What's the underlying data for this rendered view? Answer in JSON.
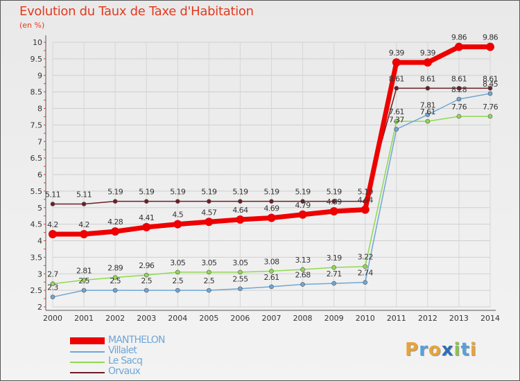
{
  "chart_data": {
    "type": "line",
    "title": "Evolution du Taux de Taxe d'Habitation",
    "subtitle": "(en %)",
    "xlabel": "",
    "ylabel": "",
    "categories": [
      "2000",
      "2001",
      "2002",
      "2003",
      "2004",
      "2005",
      "2006",
      "2007",
      "2008",
      "2009",
      "2010",
      "2011",
      "2012",
      "2013",
      "2014"
    ],
    "ylim": [
      2,
      10
    ],
    "yticks": [
      "2",
      "2.5",
      "3",
      "3.5",
      "4",
      "4.5",
      "5",
      "5.5",
      "6",
      "6.5",
      "7",
      "7.5",
      "8",
      "8.5",
      "9",
      "9.5",
      "10"
    ],
    "series": [
      {
        "name": "Orvaux",
        "color": "#6b1e24",
        "values": [
          5.11,
          5.11,
          5.19,
          5.19,
          5.19,
          5.19,
          5.19,
          5.19,
          5.19,
          5.19,
          5.19,
          8.61,
          8.61,
          8.61,
          8.61
        ],
        "labels": [
          "5.11",
          "5.11",
          "5.19",
          "5.19",
          "5.19",
          "5.19",
          "5.19",
          "5.19",
          "5.19",
          "5.19",
          "5.19",
          "8.61",
          "8.61",
          "8.61",
          "8.61"
        ]
      },
      {
        "name": "Le Sacq",
        "color": "#8fd94e",
        "values": [
          2.7,
          2.81,
          2.89,
          2.96,
          3.05,
          3.05,
          3.05,
          3.08,
          3.13,
          3.19,
          3.22,
          7.61,
          7.61,
          7.76,
          7.76
        ],
        "labels": [
          "2.7",
          "2.81",
          "2.89",
          "2.96",
          "3.05",
          "3.05",
          "3.05",
          "3.08",
          "3.13",
          "3.19",
          "3.22",
          "7.61",
          "7.61",
          "7.76",
          "7.76"
        ]
      },
      {
        "name": "Villalet",
        "color": "#6fa6d6",
        "values": [
          2.3,
          2.5,
          2.5,
          2.5,
          2.5,
          2.5,
          2.55,
          2.61,
          2.68,
          2.71,
          2.74,
          7.37,
          7.81,
          8.28,
          8.45
        ],
        "labels": [
          "2.3",
          "2.5",
          "2.5",
          "2.5",
          "2.5",
          "2.5",
          "2.55",
          "2.61",
          "2.68",
          "2.71",
          "2.74",
          "7.37",
          "7.81",
          "8.28",
          "8.45"
        ]
      },
      {
        "name": "MANTHELON",
        "color": "#ee0000",
        "values": [
          4.2,
          4.2,
          4.28,
          4.41,
          4.5,
          4.57,
          4.64,
          4.69,
          4.79,
          4.89,
          4.94,
          9.39,
          9.39,
          9.86,
          9.86
        ],
        "labels": [
          "4.2",
          "4.2",
          "4.28",
          "4.41",
          "4.5",
          "4.57",
          "4.64",
          "4.69",
          "4.79",
          "4.89",
          "4.94",
          "9.39",
          "9.39",
          "9.86",
          "9.86"
        ]
      }
    ]
  },
  "legend": {
    "items": [
      {
        "name": "MANTHELON",
        "color": "#ee0000"
      },
      {
        "name": "Villalet",
        "color": "#6fa6d6"
      },
      {
        "name": "Le Sacq",
        "color": "#8fd94e"
      },
      {
        "name": "Orvaux",
        "color": "#6b1e24"
      }
    ]
  },
  "brand": {
    "text": "Proxiti",
    "letters": [
      "P",
      "r",
      "o",
      "x",
      "i",
      "t",
      "i"
    ],
    "colors": [
      "#e8a33a",
      "#5aa0d8",
      "#e8a33a",
      "#2d6fb5",
      "#8bc34a",
      "#5aa0d8",
      "#e8a33a"
    ]
  }
}
